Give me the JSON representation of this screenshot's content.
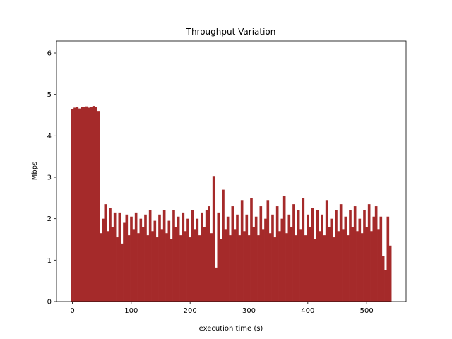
{
  "chart_data": {
    "type": "bar",
    "title": "Throughput Variation",
    "x_label": "execution time (s)",
    "y_label": "Mbps",
    "color": "#a52a2a",
    "x": [
      0,
      4,
      8,
      12,
      16,
      20,
      24,
      28,
      32,
      36,
      40,
      44,
      48,
      52,
      56,
      60,
      64,
      68,
      72,
      76,
      80,
      84,
      88,
      92,
      96,
      100,
      104,
      108,
      112,
      116,
      120,
      124,
      128,
      132,
      136,
      140,
      144,
      148,
      152,
      156,
      160,
      164,
      168,
      172,
      176,
      180,
      184,
      188,
      192,
      196,
      200,
      204,
      208,
      212,
      216,
      220,
      224,
      228,
      232,
      236,
      240,
      244,
      248,
      252,
      256,
      260,
      264,
      268,
      272,
      276,
      280,
      284,
      288,
      292,
      296,
      300,
      304,
      308,
      312,
      316,
      320,
      324,
      328,
      332,
      336,
      340,
      344,
      348,
      352,
      356,
      360,
      364,
      368,
      372,
      376,
      380,
      384,
      388,
      392,
      396,
      400,
      404,
      408,
      412,
      416,
      420,
      424,
      428,
      432,
      436,
      440,
      444,
      448,
      452,
      456,
      460,
      464,
      468,
      472,
      476,
      480,
      484,
      488,
      492,
      496,
      500,
      504,
      508,
      512,
      516,
      520,
      524,
      528,
      532,
      536,
      540
    ],
    "values": [
      4.65,
      4.68,
      4.7,
      4.66,
      4.7,
      4.69,
      4.71,
      4.68,
      4.7,
      4.72,
      4.7,
      4.6,
      1.65,
      2.0,
      2.35,
      1.7,
      2.25,
      1.8,
      2.15,
      1.55,
      2.15,
      1.4,
      1.9,
      2.1,
      1.6,
      2.05,
      1.75,
      2.15,
      1.65,
      2.0,
      1.8,
      2.1,
      1.6,
      2.2,
      1.7,
      1.95,
      1.55,
      2.1,
      1.75,
      2.2,
      1.65,
      1.95,
      1.5,
      2.2,
      1.8,
      2.05,
      1.6,
      2.15,
      1.7,
      2.0,
      1.55,
      2.2,
      1.75,
      2.0,
      1.6,
      2.15,
      1.8,
      2.2,
      2.3,
      1.65,
      3.03,
      0.82,
      2.15,
      1.5,
      2.7,
      1.75,
      2.05,
      1.6,
      2.3,
      1.75,
      2.1,
      1.6,
      2.45,
      1.7,
      2.1,
      1.6,
      2.5,
      1.8,
      2.05,
      1.6,
      2.3,
      1.75,
      2.0,
      2.45,
      1.65,
      2.1,
      1.55,
      2.3,
      1.7,
      2.0,
      2.55,
      1.65,
      2.1,
      1.8,
      2.35,
      1.6,
      2.2,
      1.75,
      2.5,
      1.6,
      2.1,
      1.8,
      2.25,
      1.5,
      2.2,
      1.7,
      2.1,
      1.6,
      2.45,
      1.8,
      2.0,
      1.55,
      2.2,
      1.7,
      2.35,
      1.75,
      2.05,
      1.6,
      2.2,
      1.8,
      2.3,
      1.7,
      2.0,
      1.65,
      2.2,
      1.8,
      2.35,
      1.7,
      2.05,
      2.3,
      1.75,
      2.05,
      1.1,
      0.75,
      2.05,
      1.35
    ],
    "bar_width": 4,
    "xlim": [
      -27,
      567
    ],
    "ylim": [
      0,
      6.29
    ],
    "xticks": [
      0,
      100,
      200,
      300,
      400,
      500
    ],
    "yticks": [
      0,
      1,
      2,
      3,
      4,
      5,
      6
    ]
  }
}
